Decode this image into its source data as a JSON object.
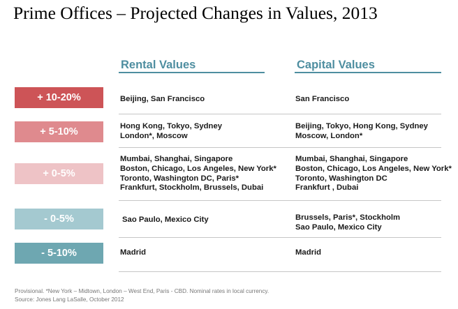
{
  "title": "Prime Offices – Projected Changes in Values, 2013",
  "columns": {
    "rental": "Rental Values",
    "capital": "Capital Values"
  },
  "colors": {
    "header": "#4e8ea0",
    "band_plus_10_20": "#cd5457",
    "band_plus_5_10": "#df8a8e",
    "band_plus_0_5": "#eec3c6",
    "band_minus_0_5": "#a4c9d0",
    "band_minus_5_10": "#6ea7b1"
  },
  "rows": [
    {
      "label": "+ 10-20%",
      "rental": [
        "Beijing, San Francisco"
      ],
      "capital": [
        "San Francisco"
      ]
    },
    {
      "label": "+ 5-10%",
      "rental": [
        "Hong Kong, Tokyo, Sydney",
        "London*, Moscow"
      ],
      "capital": [
        "Beijing, Tokyo, Hong Kong, Sydney",
        "Moscow, London*"
      ]
    },
    {
      "label": "+ 0-5%",
      "rental": [
        "Mumbai, Shanghai, Singapore",
        "Boston, Chicago, Los Angeles, New York*",
        "Toronto, Washington DC, Paris*",
        "Frankfurt, Stockholm, Brussels, Dubai"
      ],
      "capital": [
        "Mumbai, Shanghai, Singapore",
        "Boston, Chicago, Los Angeles, New York*",
        "Toronto, Washington DC",
        "Frankfurt , Dubai"
      ]
    },
    {
      "label": "- 0-5%",
      "rental": [
        "Sao Paulo, Mexico City"
      ],
      "capital": [
        "Brussels, Paris*, Stockholm",
        "Sao Paulo, Mexico City"
      ]
    },
    {
      "label": "- 5-10%",
      "rental": [
        "Madrid"
      ],
      "capital": [
        "Madrid"
      ]
    }
  ],
  "footnote": {
    "line1": "Provisional.   *New York – Midtown, London – West End, Paris - CBD. Nominal rates in local currency.",
    "line2": "Source: Jones Lang LaSalle, October 2012"
  }
}
